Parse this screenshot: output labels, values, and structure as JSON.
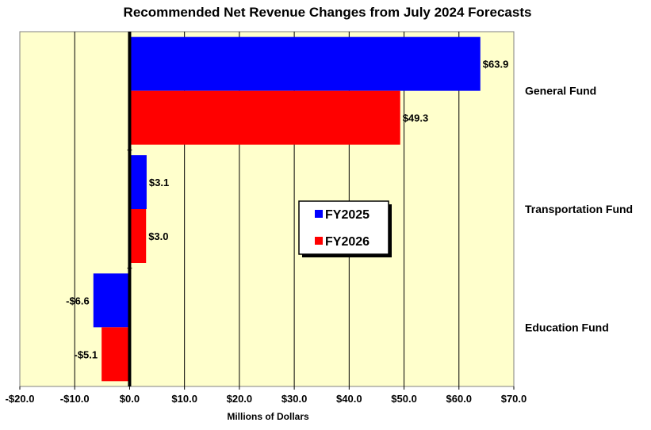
{
  "chart_data": {
    "type": "bar",
    "orientation": "horizontal",
    "title": "Recommended Net Revenue Changes from July 2024 Forecasts",
    "xlabel": "Millions of Dollars",
    "ylabel": "",
    "categories": [
      "General Fund",
      "Transportation Fund",
      "Education Fund"
    ],
    "series": [
      {
        "name": "FY2025",
        "color": "#0000ff",
        "values": [
          63.9,
          3.1,
          -6.6
        ],
        "labels": [
          "$63.9",
          "$3.1",
          "-$6.6"
        ]
      },
      {
        "name": "FY2026",
        "color": "#ff0000",
        "values": [
          49.3,
          3.0,
          -5.1
        ],
        "labels": [
          "$49.3",
          "$3.0",
          "-$5.1"
        ]
      }
    ],
    "xlim": [
      -20,
      70
    ],
    "xticks": [
      -20,
      -10,
      0,
      10,
      20,
      30,
      40,
      50,
      60,
      70
    ],
    "xtick_labels": [
      "-$20.0",
      "-$10.0",
      "$0.0",
      "$10.0",
      "$20.0",
      "$30.0",
      "$40.0",
      "$50.0",
      "$60.0",
      "$70.0"
    ],
    "grid": true,
    "legend_position": "center-right",
    "plot_background": "#ffffcc"
  }
}
